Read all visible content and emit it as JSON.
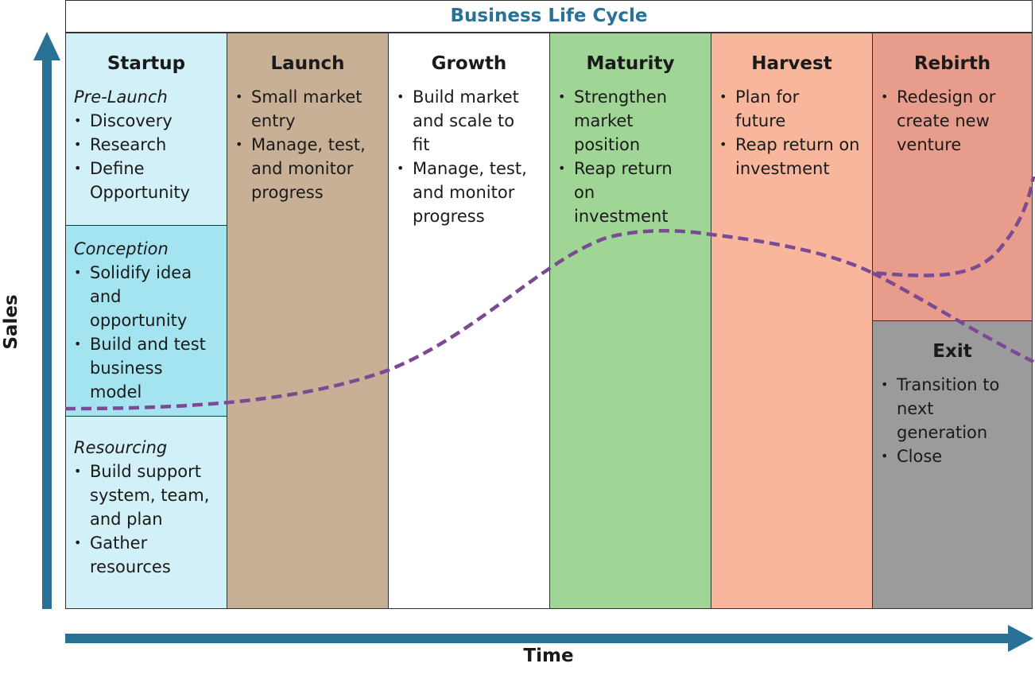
{
  "title": "Business Life Cycle",
  "axes": {
    "x_label": "Time",
    "y_label": "Sales"
  },
  "colors": {
    "title": "#2a7196",
    "axis_arrow": "#2a7196",
    "curve": "#7a4a93",
    "startup_pre": "#d2f0f7",
    "startup_concept": "#a4e4f0",
    "startup_resource": "#d2f0f7",
    "launch": "#c8b096",
    "growth": "#ffffff",
    "maturity": "#9fd595",
    "harvest": "#f8b79c",
    "rebirth": "#e89c8b",
    "exit": "#9b9b9b"
  },
  "stages": {
    "startup": {
      "title": "Startup",
      "pre_launch": {
        "label": "Pre-Launch",
        "items": [
          "Discovery",
          "Research",
          "Define Opportunity"
        ]
      },
      "conception": {
        "label": "Conception",
        "items": [
          "Solidify idea and opportunity",
          "Build and test business model"
        ]
      },
      "resourcing": {
        "label": "Resourcing",
        "items": [
          "Build support system, team, and plan",
          "Gather resources"
        ]
      }
    },
    "launch": {
      "title": "Launch",
      "items": [
        "Small market entry",
        "Manage, test, and monitor progress"
      ]
    },
    "growth": {
      "title": "Growth",
      "items": [
        "Build market and scale to fit",
        "Manage, test, and monitor progress"
      ]
    },
    "maturity": {
      "title": "Maturity",
      "items": [
        "Strengthen market position",
        "Reap return on investment"
      ]
    },
    "harvest": {
      "title": "Harvest",
      "items": [
        "Plan for future",
        "Reap return on investment"
      ]
    },
    "rebirth": {
      "title": "Rebirth",
      "items": [
        "Redesign or create new venture"
      ]
    },
    "exit": {
      "title": "Exit",
      "items": [
        "Transition to next generation",
        "Close"
      ]
    }
  }
}
